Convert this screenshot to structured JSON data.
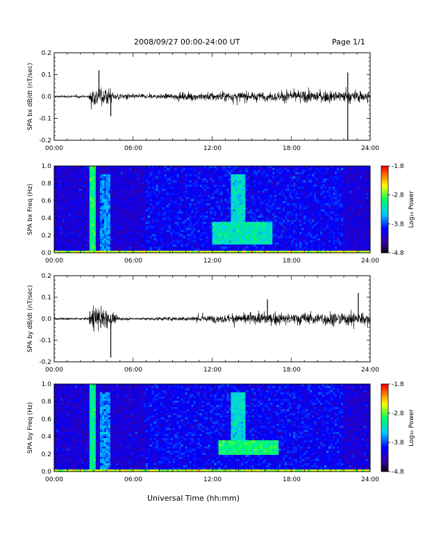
{
  "header": {
    "title": "2008/09/27  00:00-24:00 UT",
    "page": "Page 1/1"
  },
  "xlabel": "Universal Time (hh:mm)",
  "x_ticks": [
    "00:00",
    "06:00",
    "12:00",
    "18:00",
    "24:00"
  ],
  "colors": {
    "trace": "#000000",
    "spectrogram_scale": [
      "#000000",
      "#3b00a0",
      "#0000ff",
      "#00c8ff",
      "#00ff60",
      "#ffff00",
      "#ff8000",
      "#ff0000"
    ]
  },
  "chart_data": [
    {
      "type": "line",
      "id": "bx-dbdt",
      "ylabel": "SPA bx dB/dt (nT/sec)",
      "ylim": [
        -0.2,
        0.2
      ],
      "yticks": [
        "-0.2",
        "-0.1",
        "0.0",
        "0.1",
        "0.2"
      ],
      "xlim_hours": [
        0,
        24
      ],
      "series": [
        {
          "x_hours": [
            0,
            2.6,
            2.7,
            3,
            3.5,
            4,
            4.5,
            5,
            6,
            8,
            10,
            12,
            14,
            16,
            18,
            20,
            22,
            23,
            24
          ],
          "amplitude": [
            0.01,
            0.01,
            0.07,
            0.09,
            0.08,
            0.07,
            0.04,
            0.03,
            0.02,
            0.02,
            0.03,
            0.04,
            0.04,
            0.035,
            0.05,
            0.05,
            0.05,
            0.05,
            0.05
          ],
          "spikes": [
            {
              "x_hours": 3.4,
              "y": 0.12
            },
            {
              "x_hours": 4.3,
              "y": -0.09
            },
            {
              "x_hours": 22.3,
              "y": 0.11
            },
            {
              "x_hours": 22.3,
              "y": -0.2
            }
          ]
        }
      ]
    },
    {
      "type": "heatmap",
      "id": "bx-spectrogram",
      "ylabel": "SPA bx Freq (Hz)",
      "ylim": [
        0,
        1.0
      ],
      "yticks": [
        "0.0",
        "0.2",
        "0.4",
        "0.6",
        "0.8",
        "1.0"
      ],
      "xlim_hours": [
        0,
        24
      ],
      "colorbar": {
        "label": "Log₁₀ Power",
        "range": [
          -4.8,
          -1.8
        ],
        "ticks": [
          "-1.8",
          "-2.8",
          "-3.8",
          "-4.8"
        ]
      },
      "features": [
        {
          "x_hours": [
            2.7,
            3.2
          ],
          "freq_hz": [
            0.0,
            1.0
          ],
          "log_power": -3.0
        },
        {
          "x_hours": [
            3.5,
            4.2
          ],
          "freq_hz": [
            0.0,
            0.9
          ],
          "log_power": -3.6
        },
        {
          "x_hours": [
            12.0,
            16.5
          ],
          "freq_hz": [
            0.1,
            0.35
          ],
          "log_power": -3.2
        },
        {
          "x_hours": [
            13.5,
            14.5
          ],
          "freq_hz": [
            0.3,
            0.9
          ],
          "log_power": -3.3
        },
        {
          "x_hours": [
            0,
            24
          ],
          "freq_hz": [
            0.0,
            0.03
          ],
          "log_power": -2.6
        }
      ]
    },
    {
      "type": "line",
      "id": "by-dbdt",
      "ylabel": "SPA by dB/dt (nT/sec)",
      "ylim": [
        -0.2,
        0.2
      ],
      "yticks": [
        "-0.2",
        "-0.1",
        "0.0",
        "0.1",
        "0.2"
      ],
      "xlim_hours": [
        0,
        24
      ],
      "series": [
        {
          "x_hours": [
            0,
            2.6,
            2.7,
            3,
            3.5,
            4,
            4.5,
            5,
            6,
            8,
            10,
            12,
            14,
            16,
            18,
            20,
            22,
            23,
            24
          ],
          "amplitude": [
            0.01,
            0.01,
            0.08,
            0.1,
            0.1,
            0.08,
            0.04,
            0.015,
            0.01,
            0.015,
            0.02,
            0.03,
            0.04,
            0.05,
            0.05,
            0.06,
            0.06,
            0.06,
            0.05
          ],
          "spikes": [
            {
              "x_hours": 4.3,
              "y": -0.18
            },
            {
              "x_hours": 16.2,
              "y": 0.09
            },
            {
              "x_hours": 23.1,
              "y": 0.12
            }
          ]
        }
      ]
    },
    {
      "type": "heatmap",
      "id": "by-spectrogram",
      "ylabel": "SPA by Freq (Hz)",
      "ylim": [
        0,
        1.0
      ],
      "yticks": [
        "0.0",
        "0.2",
        "0.4",
        "0.6",
        "0.8",
        "1.0"
      ],
      "xlim_hours": [
        0,
        24
      ],
      "colorbar": {
        "label": "Log₁₀ Power",
        "range": [
          -4.8,
          -1.8
        ],
        "ticks": [
          "-1.8",
          "-2.8",
          "-3.8",
          "-4.8"
        ]
      },
      "features": [
        {
          "x_hours": [
            2.7,
            3.2
          ],
          "freq_hz": [
            0.0,
            1.0
          ],
          "log_power": -3.1
        },
        {
          "x_hours": [
            3.5,
            4.2
          ],
          "freq_hz": [
            0.0,
            0.9
          ],
          "log_power": -3.6
        },
        {
          "x_hours": [
            12.5,
            17.0
          ],
          "freq_hz": [
            0.2,
            0.35
          ],
          "log_power": -3.0
        },
        {
          "x_hours": [
            13.5,
            14.5
          ],
          "freq_hz": [
            0.3,
            0.9
          ],
          "log_power": -3.3
        },
        {
          "x_hours": [
            0,
            24
          ],
          "freq_hz": [
            0.0,
            0.03
          ],
          "log_power": -2.6
        }
      ]
    }
  ]
}
